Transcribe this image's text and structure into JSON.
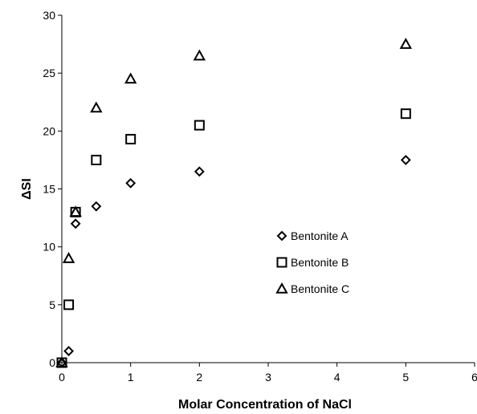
{
  "chart_data": {
    "type": "scatter",
    "title": "",
    "xlabel": "Molar Concentration of NaCl",
    "ylabel": "ΔSI",
    "xlim": [
      0,
      6
    ],
    "ylim": [
      0,
      30
    ],
    "x_ticks": [
      "0",
      "1",
      "2",
      "3",
      "4",
      "5",
      "6"
    ],
    "y_ticks": [
      "0",
      "5",
      "10",
      "15",
      "20",
      "25",
      "30"
    ],
    "grid": false,
    "legend_position": "right-center",
    "series": [
      {
        "name": "Bentonite A",
        "marker": "diamond",
        "points": [
          {
            "x": 0,
            "y": 0
          },
          {
            "x": 0.1,
            "y": 1
          },
          {
            "x": 0.2,
            "y": 12
          },
          {
            "x": 0.5,
            "y": 13.5
          },
          {
            "x": 1,
            "y": 15.5
          },
          {
            "x": 2,
            "y": 16.5
          },
          {
            "x": 5,
            "y": 17.5
          }
        ]
      },
      {
        "name": "Bentonite B",
        "marker": "square",
        "points": [
          {
            "x": 0,
            "y": 0
          },
          {
            "x": 0.1,
            "y": 5
          },
          {
            "x": 0.2,
            "y": 13
          },
          {
            "x": 0.5,
            "y": 17.5
          },
          {
            "x": 1,
            "y": 19.3
          },
          {
            "x": 2,
            "y": 20.5
          },
          {
            "x": 5,
            "y": 21.5
          }
        ]
      },
      {
        "name": "Bentonite C",
        "marker": "triangle",
        "points": [
          {
            "x": 0,
            "y": 0
          },
          {
            "x": 0.1,
            "y": 9
          },
          {
            "x": 0.2,
            "y": 13
          },
          {
            "x": 0.5,
            "y": 22
          },
          {
            "x": 1,
            "y": 24.5
          },
          {
            "x": 2,
            "y": 26.5
          },
          {
            "x": 5,
            "y": 27.5
          }
        ]
      }
    ]
  }
}
